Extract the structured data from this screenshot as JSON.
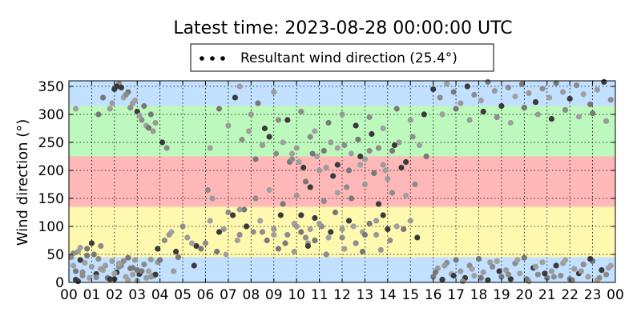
{
  "chart_data": {
    "type": "scatter",
    "title": "Latest time: 2023-08-28 00:00:00 UTC",
    "xlabel": "",
    "ylabel": "Wind direction (°)",
    "xlim": [
      0,
      24
    ],
    "ylim": [
      0,
      360
    ],
    "x_ticks": [
      "00",
      "01",
      "02",
      "03",
      "04",
      "05",
      "06",
      "07",
      "08",
      "09",
      "10",
      "11",
      "12",
      "13",
      "14",
      "15",
      "16",
      "17",
      "18",
      "19",
      "20",
      "21",
      "22",
      "23",
      "00"
    ],
    "y_ticks": [
      0,
      50,
      100,
      150,
      200,
      250,
      300,
      350
    ],
    "grid": true,
    "legend": {
      "placement": "top-center",
      "label": "Resultant wind direction (25.4°)"
    },
    "bands": [
      {
        "from": 0,
        "to": 45,
        "color": "#c2e0ff"
      },
      {
        "from": 45,
        "to": 135,
        "color": "#fff9b0"
      },
      {
        "from": 135,
        "to": 225,
        "color": "#ffb8b8"
      },
      {
        "from": 225,
        "to": 315,
        "color": "#bdf9bd"
      },
      {
        "from": 315,
        "to": 360,
        "color": "#c2e0ff"
      }
    ],
    "marker_colors": [
      "#8c8c8c",
      "#a0a0a0",
      "#787878",
      "#9a9a9a",
      "#3a3a3a"
    ],
    "series": [
      {
        "x": [
          0.1,
          0.2,
          0.3,
          0.4,
          0.5,
          0.6,
          0.7,
          0.8,
          1.0,
          1.2,
          1.3,
          1.5,
          1.7,
          1.9,
          2.1,
          2.3,
          2.5,
          2.7,
          2.9,
          3.1,
          3.3,
          3.5,
          3.7,
          3.9,
          0.3,
          0.6,
          0.9,
          1.1,
          1.4,
          1.8,
          2.2,
          2.6,
          3.0,
          3.4,
          3.8,
          0.2,
          0.5,
          0.8,
          1.6,
          2.0,
          2.4,
          2.8,
          3.2,
          3.6,
          1.0,
          1.4,
          2.2,
          2.6,
          3.0,
          0.4,
          1.2,
          2.0,
          2.8,
          3.6
        ],
        "y": [
          45,
          30,
          20,
          55,
          40,
          12,
          35,
          60,
          28,
          15,
          42,
          22,
          8,
          38,
          18,
          30,
          10,
          25,
          40,
          15,
          32,
          20,
          12,
          36,
          5,
          18,
          8,
          50,
          24,
          6,
          28,
          4,
          22,
          8,
          14,
          52,
          62,
          48,
          30,
          6,
          38,
          14,
          20,
          10,
          70,
          65,
          34,
          44,
          3,
          2,
          9,
          16,
          26,
          41
        ]
      },
      {
        "x": [
          1.3,
          1.8,
          2.0,
          2.2,
          2.4,
          2.6,
          2.8,
          3.0,
          3.2,
          3.4,
          3.6,
          3.8,
          2.1,
          2.5,
          2.9,
          3.3,
          3.7,
          4.1,
          4.3,
          0.3,
          1.5,
          1.9,
          2.3,
          2.7,
          3.1,
          3.5
        ],
        "y": [
          300,
          310,
          345,
          355,
          330,
          340,
          320,
          305,
          290,
          280,
          300,
          285,
          350,
          335,
          325,
          315,
          270,
          250,
          240,
          310,
          330,
          320,
          348,
          312,
          298,
          276
        ]
      },
      {
        "x": [
          3.9,
          4.2,
          4.5,
          4.8,
          5.2,
          5.6,
          6.0,
          6.2,
          6.5,
          6.8,
          7.2,
          7.5,
          7.8,
          4.0,
          4.4,
          4.7,
          5.0,
          5.4,
          5.8,
          6.3,
          6.6,
          7.0,
          7.4,
          7.7,
          4.6,
          5.5,
          6.1,
          6.9
        ],
        "y": [
          60,
          75,
          90,
          45,
          80,
          65,
          70,
          110,
          55,
          95,
          120,
          85,
          100,
          40,
          85,
          55,
          100,
          70,
          60,
          150,
          90,
          125,
          75,
          130,
          20,
          30,
          165,
          50
        ]
      },
      {
        "x": [
          6.2,
          6.6,
          7.0,
          7.3,
          7.6,
          7.9,
          8.2,
          8.5,
          8.8,
          9.1,
          9.4,
          9.7,
          10.0,
          10.3,
          10.6,
          10.9,
          11.2,
          11.5,
          11.8,
          12.1,
          12.4,
          12.7,
          13.0,
          13.3,
          13.6,
          13.9,
          14.2,
          14.5,
          14.8,
          15.1,
          15.4,
          15.7,
          8.0,
          8.6,
          9.2,
          9.8,
          10.4,
          11.0,
          11.6,
          12.2,
          12.8,
          13.4,
          14.0,
          14.6,
          15.2,
          7.5,
          8.3,
          9.0,
          9.6,
          10.2,
          10.8,
          11.4,
          12.0,
          12.6,
          13.2,
          13.8,
          14.4,
          15.0,
          15.6
        ],
        "y": [
          240,
          310,
          280,
          330,
          255,
          270,
          220,
          245,
          260,
          230,
          250,
          215,
          240,
          205,
          260,
          225,
          235,
          250,
          210,
          245,
          230,
          255,
          220,
          265,
          240,
          200,
          235,
          250,
          215,
          260,
          245,
          225,
          300,
          275,
          290,
          230,
          180,
          200,
          190,
          170,
          210,
          195,
          185,
          205,
          175,
          350,
          320,
          340,
          290,
          305,
          270,
          285,
          300,
          280,
          295,
          275,
          310,
          290,
          300
        ]
      },
      {
        "x": [
          7.5,
          7.8,
          8.1,
          8.4,
          8.7,
          9.0,
          9.3,
          9.6,
          9.9,
          10.2,
          10.5,
          10.8,
          11.1,
          11.4,
          11.7,
          12.0,
          12.3,
          12.6,
          12.9,
          13.2,
          13.5,
          13.8,
          14.1,
          14.4,
          14.7,
          15.0,
          15.3,
          8.2,
          8.8,
          9.4,
          10.0,
          10.6,
          11.2,
          11.8,
          12.4,
          13.0,
          13.6,
          14.2,
          14.8,
          9.2,
          9.9,
          10.5,
          11.3,
          12.1,
          12.9,
          13.7
        ],
        "y": [
          130,
          100,
          90,
          110,
          75,
          95,
          120,
          85,
          105,
          90,
          70,
          115,
          100,
          80,
          125,
          95,
          110,
          70,
          90,
          105,
          85,
          120,
          75,
          100,
          95,
          110,
          80,
          150,
          165,
          140,
          155,
          170,
          145,
          160,
          150,
          175,
          140,
          160,
          155,
          60,
          55,
          65,
          50,
          60,
          55,
          58
        ]
      },
      {
        "x": [
          8.5,
          9.0,
          9.5,
          10.0,
          10.2,
          10.4,
          10.6,
          10.8,
          11.0,
          11.5,
          12.0,
          12.5,
          13.0,
          13.5,
          14.0,
          9.8,
          10.1,
          10.7,
          11.3,
          12.8,
          13.2,
          11.8,
          12.3,
          13.8,
          14.3
        ],
        "y": [
          90,
          85,
          70,
          100,
          120,
          80,
          95,
          75,
          105,
          90,
          80,
          100,
          85,
          110,
          95,
          220,
          215,
          230,
          205,
          225,
          235,
          240,
          200,
          210,
          245
        ]
      },
      {
        "x": [
          16.0,
          16.2,
          16.4,
          16.6,
          16.8,
          17.0,
          17.2,
          17.4,
          17.6,
          17.8,
          18.0,
          18.2,
          18.4,
          18.6,
          18.8,
          19.0,
          19.2,
          19.4,
          19.6,
          19.8,
          20.0,
          20.2,
          20.4,
          20.6,
          20.8,
          21.0,
          21.2,
          21.4,
          21.6,
          21.8,
          22.0,
          22.2,
          22.4,
          22.6,
          22.8,
          23.0,
          23.2,
          23.4,
          23.6,
          23.8,
          16.1,
          16.5,
          16.9,
          17.3,
          17.7,
          18.1,
          18.5,
          18.9,
          19.3,
          19.7,
          20.1,
          20.5,
          20.9,
          21.3,
          21.7,
          22.1,
          22.5,
          22.9,
          23.3,
          23.7
        ],
        "y": [
          10,
          25,
          5,
          35,
          15,
          40,
          20,
          8,
          30,
          12,
          42,
          18,
          4,
          28,
          38,
          10,
          22,
          6,
          34,
          16,
          44,
          2,
          26,
          14,
          36,
          8,
          20,
          30,
          12,
          40,
          6,
          24,
          16,
          32,
          10,
          38,
          4,
          22,
          14,
          30,
          18,
          30,
          12,
          2,
          24,
          8,
          36,
          20,
          14,
          40,
          6,
          28,
          16,
          10,
          34,
          4,
          20,
          42,
          8,
          26
        ]
      },
      {
        "x": [
          16.0,
          16.3,
          16.6,
          16.9,
          17.2,
          17.5,
          17.8,
          18.1,
          18.4,
          18.7,
          19.0,
          19.3,
          19.6,
          19.9,
          20.2,
          20.5,
          20.8,
          21.1,
          21.4,
          21.7,
          22.0,
          22.3,
          22.6,
          22.9,
          23.2,
          23.5,
          23.8,
          16.4,
          17.0,
          17.6,
          18.2,
          18.8,
          19.4,
          20.0,
          20.6,
          21.2,
          21.8,
          22.4,
          23.0,
          23.6
        ],
        "y": [
          345,
          330,
          355,
          340,
          320,
          350,
          335,
          325,
          358,
          342,
          315,
          348,
          332,
          354,
          338,
          322,
          346,
          330,
          356,
          340,
          328,
          352,
          336,
          318,
          344,
          358,
          326,
          300,
          310,
          290,
          305,
          295,
          285,
          312,
          300,
          292,
          308,
          296,
          302,
          288
        ]
      }
    ]
  }
}
